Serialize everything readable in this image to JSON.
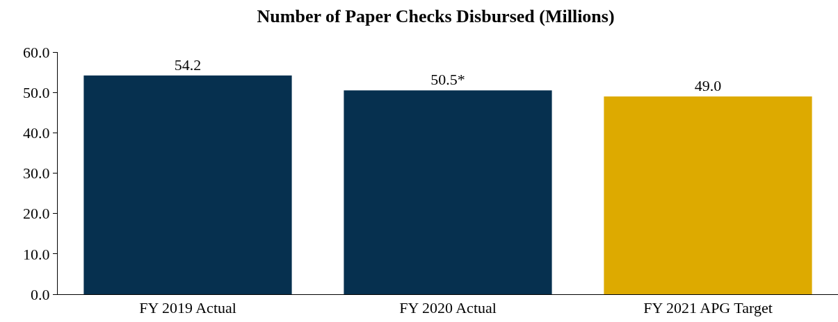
{
  "chart_data": {
    "type": "bar",
    "title": "Number of Paper Checks Disbursed (Millions)",
    "categories": [
      "FY 2019 Actual",
      "FY 2020 Actual",
      "FY 2021 APG Target"
    ],
    "values": [
      54.2,
      50.5,
      49.0
    ],
    "colors": [
      "#06304f",
      "#06304f",
      "#ddaa00"
    ],
    "value_labels": [
      "54.2",
      "50.5*",
      "49.0"
    ],
    "ylim": [
      0,
      60
    ],
    "yticks": [
      {
        "value": 0,
        "label": "0.0"
      },
      {
        "value": 10,
        "label": "10.0"
      },
      {
        "value": 20,
        "label": "20.0"
      },
      {
        "value": 30,
        "label": "30.0"
      },
      {
        "value": 40,
        "label": "40.0"
      },
      {
        "value": 50,
        "label": "50.0"
      },
      {
        "value": 60,
        "label": "60.0"
      }
    ],
    "grid": false
  }
}
